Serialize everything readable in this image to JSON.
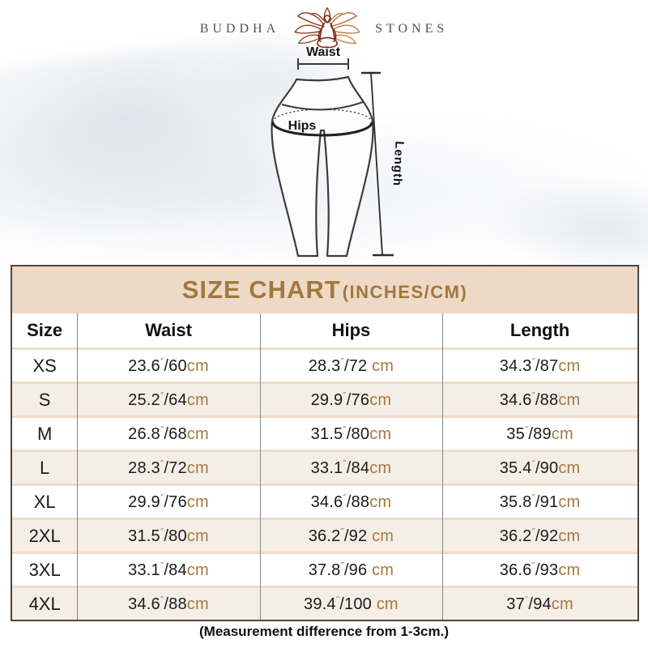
{
  "brand": {
    "word_left": "BUDDHA",
    "word_right": "STONES",
    "lotus_icon": "lotus-meditation-icon"
  },
  "diagram": {
    "waist_label": "Waist",
    "hips_label": "Hips",
    "length_label": "Length"
  },
  "chart": {
    "title": "SIZE CHART",
    "title_suffix": "(INCHES/CM)",
    "columns": [
      "Size",
      "Waist",
      "Hips",
      "Length"
    ],
    "unit_inch_mark": "″",
    "unit_cm": "cm",
    "rows": [
      {
        "size": "XS",
        "cells": [
          {
            "in": "23.6",
            "cm": "60"
          },
          {
            "in": "28.3",
            "cm": "72 "
          },
          {
            "in": "34.3",
            "cm": "87"
          }
        ]
      },
      {
        "size": "S",
        "cells": [
          {
            "in": "25.2",
            "cm": "64"
          },
          {
            "in": "29.9",
            "cm": "76"
          },
          {
            "in": "34.6",
            "cm": "88"
          }
        ]
      },
      {
        "size": "M",
        "cells": [
          {
            "in": "26.8",
            "cm": "68"
          },
          {
            "in": "31.5",
            "cm": "80"
          },
          {
            "in": "35",
            "cm": "89"
          }
        ]
      },
      {
        "size": "L",
        "cells": [
          {
            "in": "28.3",
            "cm": "72"
          },
          {
            "in": "33.1",
            "cm": "84"
          },
          {
            "in": "35.4",
            "cm": "90"
          }
        ]
      },
      {
        "size": "XL",
        "cells": [
          {
            "in": "29.9",
            "cm": "76"
          },
          {
            "in": "34.6",
            "cm": "88"
          },
          {
            "in": "35.8",
            "cm": "91"
          }
        ]
      },
      {
        "size": "2XL",
        "cells": [
          {
            "in": "31.5",
            "cm": "80"
          },
          {
            "in": "36.2",
            "cm": "92 "
          },
          {
            "in": "36.2",
            "cm": "92"
          }
        ]
      },
      {
        "size": "3XL",
        "cells": [
          {
            "in": "33.1",
            "cm": "84"
          },
          {
            "in": "37.8",
            "cm": "96 "
          },
          {
            "in": "36.6",
            "cm": "93"
          }
        ]
      },
      {
        "size": "4XL",
        "cells": [
          {
            "in": "34.6",
            "cm": "88"
          },
          {
            "in": "39.4",
            "cm": "100 "
          },
          {
            "in": "37",
            "cm": "94"
          }
        ]
      }
    ],
    "note": "(Measurement difference from 1-3cm.)"
  },
  "colors": {
    "band_beige": "#eed9c7",
    "row_beige": "#f5eee6",
    "gold_text": "#a1783e",
    "table_border": "#4e463e",
    "lotus_dark_red": "#8e3120",
    "lotus_orange": "#bf7a3e"
  }
}
